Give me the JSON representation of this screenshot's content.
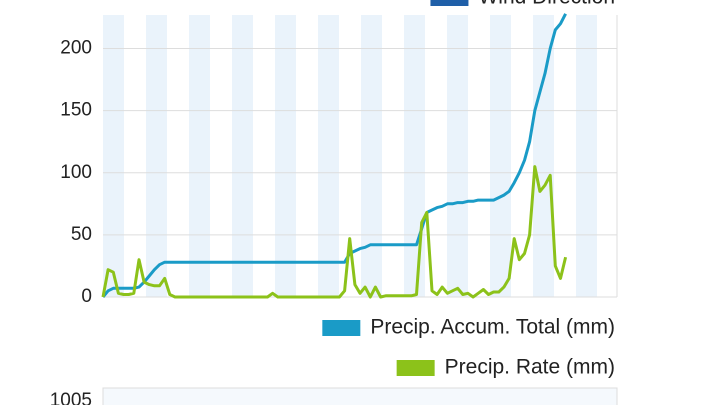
{
  "chart_data": [
    {
      "type": "line",
      "x": [
        0,
        1,
        2,
        3,
        4,
        5,
        6,
        7,
        8,
        9,
        10,
        11,
        12,
        13,
        14,
        15,
        16,
        17,
        18,
        19,
        20,
        21,
        22,
        23,
        24,
        25,
        26,
        27,
        28,
        29,
        30,
        31,
        32,
        33,
        34,
        35,
        36,
        37,
        38,
        39,
        40,
        41,
        42,
        43,
        44,
        45,
        46,
        47,
        48,
        49,
        50,
        51,
        52,
        53,
        54,
        55,
        56,
        57,
        58,
        59,
        60,
        61,
        62,
        63,
        64,
        65,
        66,
        67,
        68,
        69,
        70,
        71,
        72,
        73,
        74,
        75,
        76,
        77,
        78,
        79,
        80,
        81,
        82,
        83,
        84,
        85,
        86,
        87,
        88,
        89,
        90
      ],
      "xlim": [
        0,
        100
      ],
      "ylim": [
        0,
        227
      ],
      "yticks": [
        0,
        50,
        100,
        150,
        200
      ],
      "grid": true,
      "series": [
        {
          "name": "Wind Direction",
          "color": "#1f5fa8",
          "values": null
        },
        {
          "name": "Precip. Accum. Total (mm)",
          "color": "#1a9bc7",
          "values": [
            0,
            5,
            7,
            7,
            7,
            7,
            7,
            8,
            12,
            17,
            22,
            26,
            28,
            28,
            28,
            28,
            28,
            28,
            28,
            28,
            28,
            28,
            28,
            28,
            28,
            28,
            28,
            28,
            28,
            28,
            28,
            28,
            28,
            28,
            28,
            28,
            28,
            28,
            28,
            28,
            28,
            28,
            28,
            28,
            28,
            28,
            28,
            28,
            35,
            37,
            39,
            40,
            42,
            42,
            42,
            42,
            42,
            42,
            42,
            42,
            42,
            42,
            55,
            68,
            70,
            72,
            73,
            75,
            75,
            76,
            76,
            77,
            77,
            78,
            78,
            78,
            78,
            80,
            82,
            85,
            92,
            100,
            110,
            125,
            150,
            165,
            180,
            200,
            215,
            220,
            228
          ]
        },
        {
          "name": "Precip. Rate (mm)",
          "color": "#8cc21a",
          "values": [
            0,
            22,
            20,
            3,
            2,
            2,
            3,
            30,
            12,
            10,
            9,
            9,
            15,
            2,
            0,
            0,
            0,
            0,
            0,
            0,
            0,
            0,
            0,
            0,
            0,
            0,
            0,
            0,
            0,
            0,
            0,
            0,
            0,
            3,
            0,
            0,
            0,
            0,
            0,
            0,
            0,
            0,
            0,
            0,
            0,
            0,
            0,
            5,
            47,
            10,
            3,
            8,
            0,
            8,
            0,
            1,
            1,
            1,
            1,
            1,
            1,
            2,
            60,
            68,
            5,
            2,
            8,
            3,
            5,
            7,
            2,
            3,
            0,
            3,
            6,
            2,
            4,
            4,
            8,
            15,
            47,
            30,
            35,
            50,
            105,
            85,
            90,
            98,
            25,
            15,
            32
          ]
        }
      ]
    },
    {
      "type": "line",
      "yticks": [
        1005
      ]
    }
  ]
}
